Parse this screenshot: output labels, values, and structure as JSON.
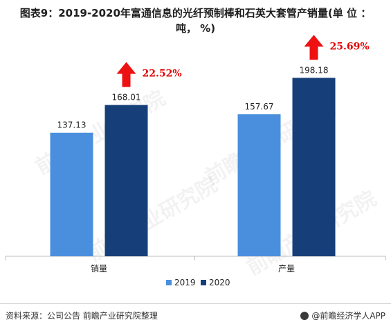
{
  "title_line1": "图表9：2019-2020年富通信息的光纤预制棒和石英大套管产销量(单 位 ：",
  "title_line2": "吨， %)",
  "watermark": "前瞻产业研究院",
  "source": "资料来源：公司公告 前瞻产业研究院整理",
  "brand": "@前瞻经济学人APP",
  "colors": {
    "2019": "#4a8fde",
    "2020": "#163f7a",
    "arrow": "#ee1111",
    "growth_text": "#e30000"
  },
  "chart_data": {
    "type": "bar",
    "categories": [
      "销量",
      "产量"
    ],
    "series": [
      {
        "name": "2019",
        "values": [
          137.13,
          157.67
        ]
      },
      {
        "name": "2020",
        "values": [
          168.01,
          198.18
        ]
      }
    ],
    "growth_labels": [
      "22.52%",
      "25.69%"
    ],
    "ylim": [
      0,
      250
    ],
    "grid": false,
    "legend": "bottom-center"
  }
}
